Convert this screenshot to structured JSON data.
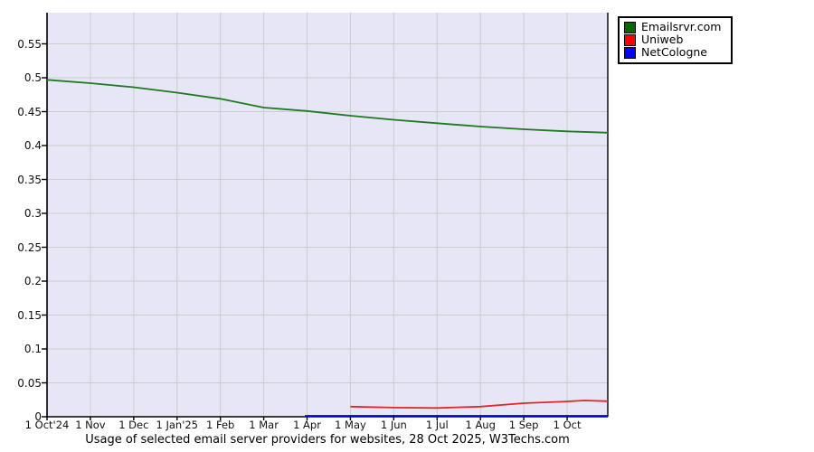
{
  "chart_data": {
    "type": "line",
    "caption": "Usage of selected email server providers for websites, 28 Oct 2025, W3Techs.com",
    "x_tick_labels": [
      "1 Oct'24",
      "1 Nov",
      "1 Dec",
      "1 Jan'25",
      "1 Feb",
      "1 Mar",
      "1 Apr",
      "1 May",
      "1 Jun",
      "1 Jul",
      "1 Aug",
      "1 Sep",
      "1 Oct"
    ],
    "y_tick_values": [
      0,
      0.05,
      0.1,
      0.15,
      0.2,
      0.25,
      0.3,
      0.35,
      0.4,
      0.45,
      0.5,
      0.55
    ],
    "y_tick_labels": [
      "0",
      "0.05",
      "0.1",
      "0.15",
      "0.2",
      "0.25",
      "0.3",
      "0.35",
      "0.4",
      "0.45",
      "0.5",
      "0.55"
    ],
    "ylim": [
      0,
      0.596
    ],
    "xlim_months": [
      0,
      12.94
    ],
    "grid": true,
    "legend_position": "top-right",
    "plot_bg": "#e6e6f6",
    "grid_color": "#cccccc",
    "axis_color": "#000000",
    "series": [
      {
        "name": "Emailsrvr.com",
        "color": "#1e7a1e",
        "legend_color": "#006600",
        "line_width": 1.8,
        "x": [
          0,
          1,
          2,
          3,
          4,
          5,
          6,
          7,
          8,
          9,
          10,
          11,
          12,
          12.94
        ],
        "values": [
          0.497,
          0.492,
          0.486,
          0.478,
          0.469,
          0.456,
          0.451,
          0.444,
          0.438,
          0.433,
          0.428,
          0.424,
          0.421,
          0.419
        ]
      },
      {
        "name": "Uniweb",
        "color": "#e02828",
        "legend_color": "#ff0000",
        "line_width": 1.8,
        "x": [
          7,
          8,
          9,
          10,
          11,
          12,
          12.4,
          12.94
        ],
        "values": [
          0.015,
          0.0135,
          0.013,
          0.015,
          0.02,
          0.0225,
          0.024,
          0.023
        ]
      },
      {
        "name": "NetCologne",
        "color": "#0000cc",
        "legend_color": "#0000ff",
        "line_width": 2.4,
        "x": [
          5.95,
          12.94
        ],
        "values": [
          0.001,
          0.001
        ]
      }
    ]
  }
}
